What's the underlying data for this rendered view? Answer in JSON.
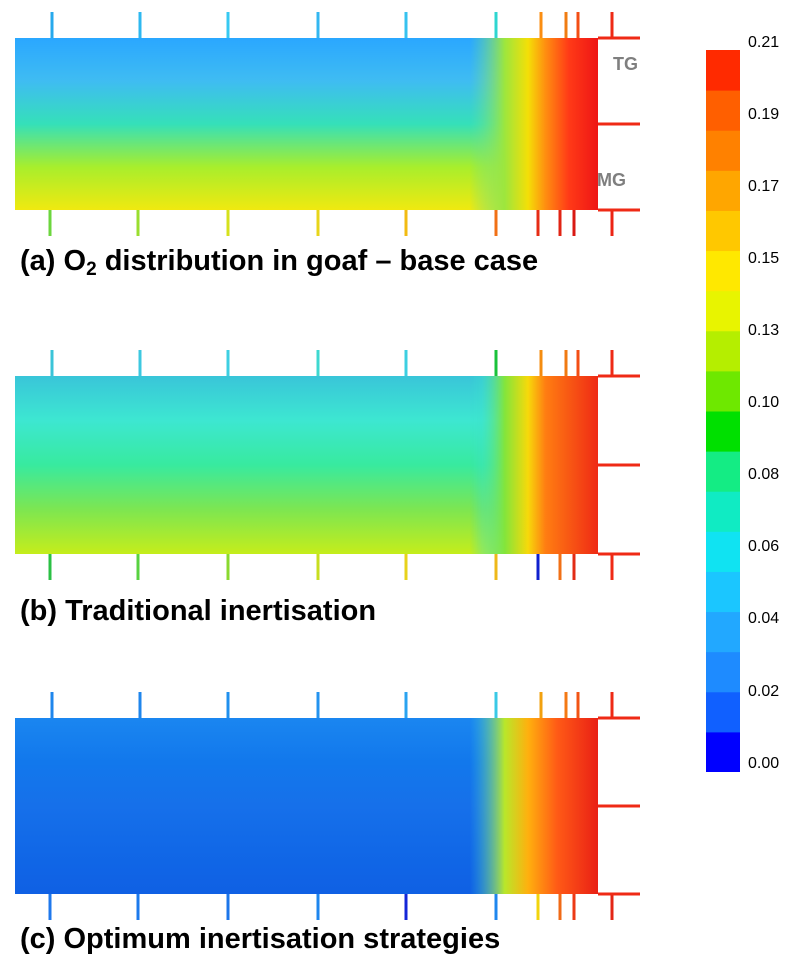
{
  "panels": [
    {
      "caption_prefix": "(a) O",
      "caption_sub": "2",
      "caption_suffix": " distribution in goaf – base case",
      "labels": {
        "tg": "TG",
        "mg": "MG"
      },
      "field": {
        "bg": [
          "#2aa7ff",
          "#3fbcf2",
          "#35e0b9",
          "#a8ee2c",
          "#f0e910"
        ],
        "front": [
          {
            "x": 0.0,
            "color": "#46c7e6"
          },
          {
            "x": 0.75,
            "color": "#4ddcd0"
          },
          {
            "x": 0.84,
            "color": "#9de63d"
          },
          {
            "x": 0.88,
            "color": "#f4df07"
          },
          {
            "x": 0.91,
            "color": "#ff8e10"
          },
          {
            "x": 0.95,
            "color": "#ff3a17"
          },
          {
            "x": 1.0,
            "color": "#ee1515"
          }
        ]
      }
    },
    {
      "caption_prefix": "(b) Traditional inertisation",
      "caption_sub": "",
      "caption_suffix": "",
      "labels": {
        "tg": "",
        "mg": ""
      },
      "field": {
        "bg": [
          "#39c5d9",
          "#3de7d1",
          "#38ea9f",
          "#7de651",
          "#c5ed1b"
        ],
        "front": [
          {
            "x": 0.0,
            "color": "#3ad0d4"
          },
          {
            "x": 0.8,
            "color": "#3ee2c8"
          },
          {
            "x": 0.84,
            "color": "#83e53b"
          },
          {
            "x": 0.88,
            "color": "#f7d90a"
          },
          {
            "x": 0.91,
            "color": "#ff7d12"
          },
          {
            "x": 1.0,
            "color": "#ef2a15"
          }
        ]
      }
    },
    {
      "caption_prefix": "(c) Optimum inertisation strategies",
      "caption_sub": "",
      "caption_suffix": "",
      "labels": {
        "tg": "",
        "mg": ""
      },
      "field": {
        "bg": [
          "#1a86f0",
          "#1278ec",
          "#1670ea",
          "#1168e7",
          "#0f60e4"
        ],
        "front": [
          {
            "x": 0.0,
            "color": "#1a7cee"
          },
          {
            "x": 0.6,
            "color": "#2196f2"
          },
          {
            "x": 0.78,
            "color": "#39cde6"
          },
          {
            "x": 0.84,
            "color": "#b9e72a"
          },
          {
            "x": 0.88,
            "color": "#ffb00e"
          },
          {
            "x": 0.93,
            "color": "#ff5a16"
          },
          {
            "x": 1.0,
            "color": "#e92015"
          }
        ]
      }
    }
  ],
  "colorbar": {
    "ticks": [
      "0.21",
      "0.19",
      "0.17",
      "0.15",
      "0.13",
      "0.10",
      "0.08",
      "0.06",
      "0.04",
      "0.02",
      "0.00"
    ],
    "colors": [
      "#0000ff",
      "#1060ff",
      "#1e8bff",
      "#22a8ff",
      "#1bc6ff",
      "#10e3f2",
      "#10ebc3",
      "#14ec84",
      "#00e000",
      "#6ee800",
      "#b5ee00",
      "#e8f400",
      "#ffe800",
      "#ffc800",
      "#ffa600",
      "#ff8100",
      "#ff5f00",
      "#ff2a00"
    ]
  },
  "tick_colors": [
    {
      "top": [
        "#27a9ec",
        "#2eb8f0",
        "#37c9f2",
        "#33b7f1",
        "#36c2ef",
        "#2ed6d0",
        "#fb8e12",
        "#f07c12",
        "#f34e14",
        "#ee2a15"
      ],
      "bottom": [
        "#6cd63e",
        "#9ade2f",
        "#d6e11c",
        "#e8d51a",
        "#f2bb12",
        "#f17016",
        "#e62c15",
        "#e12414",
        "#d91913",
        "#ec2414"
      ],
      "face": [
        "#ef2a15",
        "#ef2a15",
        "#ef2a15"
      ]
    },
    {
      "top": [
        "#3bc4d8",
        "#3dc8e0",
        "#3dcfe2",
        "#3ed8d0",
        "#3ccfe1",
        "#19c23a",
        "#f48c10",
        "#f07a12",
        "#f34e14",
        "#ee2a15"
      ],
      "bottom": [
        "#2bc044",
        "#58d240",
        "#8ad92f",
        "#c8de1f",
        "#e7d21b",
        "#eeb81a",
        "#1020ce",
        "#f17016",
        "#e22c15",
        "#ef2a15"
      ],
      "face": [
        "#ef2a15",
        "#ef2a15",
        "#ef2a15"
      ]
    },
    {
      "top": [
        "#1f86ec",
        "#1f86ec",
        "#2090ee",
        "#2493ef",
        "#2aa3f0",
        "#39c9e6",
        "#f2a10f",
        "#f47914",
        "#f25414",
        "#ee2a15"
      ],
      "bottom": [
        "#1f78ec",
        "#1c7aec",
        "#1c76ea",
        "#1e86ee",
        "#1426d8",
        "#1f87ee",
        "#f2d40d",
        "#f06a16",
        "#ec3a16",
        "#e32615"
      ],
      "face": [
        "#ef2a15",
        "#ef2a15",
        "#ef2a15"
      ]
    }
  ]
}
